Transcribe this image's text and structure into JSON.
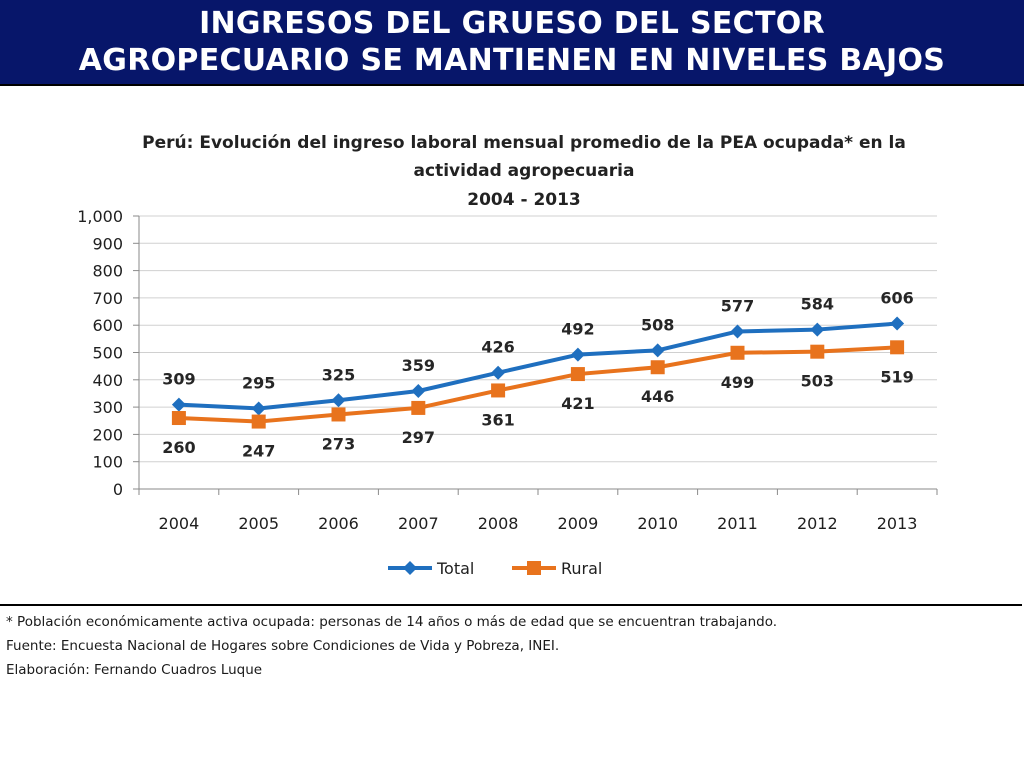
{
  "slide": {
    "title_line1": "INGRESOS DEL GRUESO DEL SECTOR",
    "title_line2": "AGROPECUARIO SE MANTIENEN EN NIVELES BAJOS"
  },
  "chart_data": {
    "type": "line",
    "title_lines": [
      "Perú: Evolución del ingreso laboral mensual promedio de la PEA ocupada* en la",
      "actividad agropecuaria",
      "2004 - 2013"
    ],
    "categories": [
      "2004",
      "2005",
      "2006",
      "2007",
      "2008",
      "2009",
      "2010",
      "2011",
      "2012",
      "2013"
    ],
    "ylim": [
      0,
      1000
    ],
    "yticks": [
      0,
      100,
      200,
      300,
      400,
      500,
      600,
      700,
      800,
      900,
      1000
    ],
    "ytick_labels": [
      "0",
      "100",
      "200",
      "300",
      "400",
      "500",
      "600",
      "700",
      "800",
      "900",
      "1,000"
    ],
    "grid": true,
    "legend_position": "bottom",
    "series": [
      {
        "name": "Total",
        "color": "#1f6fbf",
        "marker": "diamond",
        "label_position": "above",
        "values": [
          309,
          295,
          325,
          359,
          426,
          492,
          508,
          577,
          584,
          606
        ]
      },
      {
        "name": "Rural",
        "color": "#e8731d",
        "marker": "square",
        "label_position": "below",
        "values": [
          260,
          247,
          273,
          297,
          361,
          421,
          446,
          499,
          503,
          519
        ]
      }
    ]
  },
  "footnotes": {
    "definition": "* Población económicamente activa ocupada: personas de 14 años o más de edad que se encuentran trabajando.",
    "source": "Fuente: Encuesta Nacional de Hogares sobre Condiciones de Vida y Pobreza, INEI.",
    "credit": "Elaboración: Fernando Cuadros Luque"
  }
}
